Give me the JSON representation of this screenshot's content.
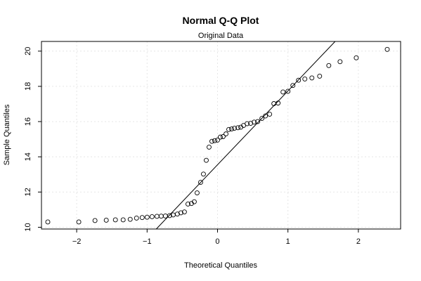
{
  "chart_data": {
    "type": "scatter",
    "title": "Normal Q-Q Plot",
    "subtitle": "Original Data",
    "xlabel": "Theoretical Quantiles",
    "ylabel": "Sample Quantiles",
    "xlim": [
      -2.5,
      2.6
    ],
    "ylim": [
      9.9,
      20.55
    ],
    "xticks": [
      -2,
      -1,
      0,
      1,
      2
    ],
    "yticks": [
      10,
      12,
      14,
      16,
      18,
      20
    ],
    "xtick_labels": [
      "−2",
      "−1",
      "0",
      "1",
      "2"
    ],
    "ytick_labels": [
      "10",
      "12",
      "14",
      "16",
      "18",
      "20"
    ],
    "grid": true,
    "reference_line": {
      "x1": -0.87,
      "y1": 9.9,
      "x2": 1.67,
      "y2": 20.55
    },
    "points": [
      {
        "x": -2.41,
        "y": 10.3
      },
      {
        "x": -1.97,
        "y": 10.3
      },
      {
        "x": -1.74,
        "y": 10.38
      },
      {
        "x": -1.58,
        "y": 10.4
      },
      {
        "x": -1.45,
        "y": 10.42
      },
      {
        "x": -1.34,
        "y": 10.42
      },
      {
        "x": -1.24,
        "y": 10.45
      },
      {
        "x": -1.15,
        "y": 10.52
      },
      {
        "x": -1.07,
        "y": 10.55
      },
      {
        "x": -1.0,
        "y": 10.57
      },
      {
        "x": -0.93,
        "y": 10.6
      },
      {
        "x": -0.86,
        "y": 10.62
      },
      {
        "x": -0.8,
        "y": 10.63
      },
      {
        "x": -0.74,
        "y": 10.64
      },
      {
        "x": -0.68,
        "y": 10.66
      },
      {
        "x": -0.63,
        "y": 10.7
      },
      {
        "x": -0.57,
        "y": 10.75
      },
      {
        "x": -0.52,
        "y": 10.82
      },
      {
        "x": -0.47,
        "y": 10.87
      },
      {
        "x": -0.42,
        "y": 11.32
      },
      {
        "x": -0.37,
        "y": 11.35
      },
      {
        "x": -0.33,
        "y": 11.45
      },
      {
        "x": -0.29,
        "y": 11.95
      },
      {
        "x": -0.24,
        "y": 12.55
      },
      {
        "x": -0.2,
        "y": 13.02
      },
      {
        "x": -0.16,
        "y": 13.8
      },
      {
        "x": -0.12,
        "y": 14.55
      },
      {
        "x": -0.08,
        "y": 14.88
      },
      {
        "x": -0.04,
        "y": 14.92
      },
      {
        "x": 0.0,
        "y": 14.95
      },
      {
        "x": 0.04,
        "y": 15.12
      },
      {
        "x": 0.08,
        "y": 15.15
      },
      {
        "x": 0.12,
        "y": 15.3
      },
      {
        "x": 0.16,
        "y": 15.55
      },
      {
        "x": 0.2,
        "y": 15.58
      },
      {
        "x": 0.24,
        "y": 15.62
      },
      {
        "x": 0.29,
        "y": 15.65
      },
      {
        "x": 0.33,
        "y": 15.68
      },
      {
        "x": 0.37,
        "y": 15.78
      },
      {
        "x": 0.42,
        "y": 15.88
      },
      {
        "x": 0.47,
        "y": 15.9
      },
      {
        "x": 0.52,
        "y": 15.97
      },
      {
        "x": 0.57,
        "y": 16.0
      },
      {
        "x": 0.63,
        "y": 16.18
      },
      {
        "x": 0.68,
        "y": 16.32
      },
      {
        "x": 0.74,
        "y": 16.42
      },
      {
        "x": 0.8,
        "y": 17.02
      },
      {
        "x": 0.86,
        "y": 17.05
      },
      {
        "x": 0.93,
        "y": 17.68
      },
      {
        "x": 1.0,
        "y": 17.72
      },
      {
        "x": 1.07,
        "y": 18.05
      },
      {
        "x": 1.15,
        "y": 18.35
      },
      {
        "x": 1.24,
        "y": 18.42
      },
      {
        "x": 1.34,
        "y": 18.48
      },
      {
        "x": 1.45,
        "y": 18.58
      },
      {
        "x": 1.58,
        "y": 19.18
      },
      {
        "x": 1.74,
        "y": 19.4
      },
      {
        "x": 1.97,
        "y": 19.62
      },
      {
        "x": 2.41,
        "y": 20.1
      }
    ]
  }
}
